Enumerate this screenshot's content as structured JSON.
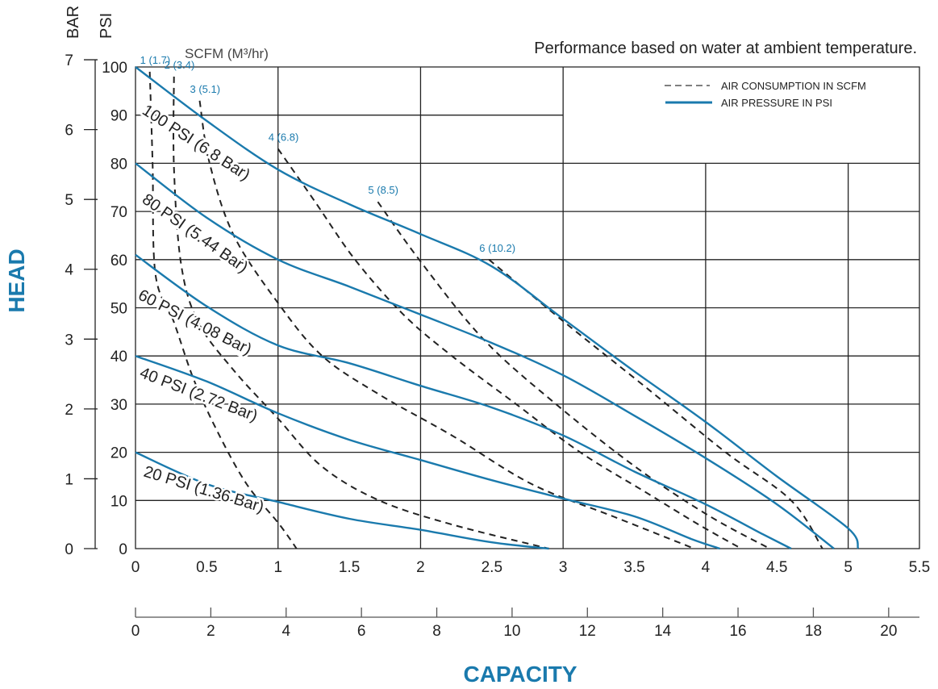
{
  "chart_data": {
    "type": "line",
    "title": "Performance based on water at ambient temperature.",
    "xlabel": "CAPACITY",
    "ylabel": "HEAD",
    "y_units_left": "BAR",
    "y_units_right": "PSI",
    "air_units_label": "SCFM (M³/hr)",
    "xlim": [
      0,
      5.5
    ],
    "ylim": [
      0,
      100
    ],
    "x_ticks": [
      "0",
      "0.5",
      "1",
      "1.5",
      "2",
      "2.5",
      "3",
      "3.5",
      "4",
      "4.5",
      "5",
      "5.5"
    ],
    "x_tick_values": [
      0,
      0.5,
      1,
      1.5,
      2,
      2.5,
      3,
      3.5,
      4,
      4.5,
      5,
      5.5
    ],
    "x2_ticks": [
      "0",
      "2",
      "4",
      "6",
      "8",
      "10",
      "12",
      "14",
      "16",
      "18",
      "20"
    ],
    "x2_tick_values": [
      0,
      2,
      4,
      6,
      8,
      10,
      12,
      14,
      16,
      18,
      20
    ],
    "x2_per_x": 3.785,
    "psi_ticks": [
      "0",
      "10",
      "20",
      "30",
      "40",
      "50",
      "60",
      "70",
      "80",
      "90",
      "100"
    ],
    "psi_tick_values": [
      0,
      10,
      20,
      30,
      40,
      50,
      60,
      70,
      80,
      90,
      100
    ],
    "bar_ticks": [
      "0",
      "1",
      "2",
      "3",
      "4",
      "5",
      "6",
      "7"
    ],
    "bar_tick_values": [
      0,
      1,
      2,
      3,
      4,
      5,
      6,
      7
    ],
    "psi_per_bar": 14.5,
    "grid": true,
    "legend": {
      "placement": "top-right",
      "entries": [
        "AIR CONSUMPTION IN SCFM",
        "AIR PRESSURE IN PSI"
      ]
    },
    "colors": {
      "pressure": "#1a7aad",
      "air": "#222222",
      "accent": "#1a7aad"
    },
    "pressure_series": [
      {
        "name": "100 PSI (6.8 Bar)",
        "points": [
          [
            0,
            100
          ],
          [
            0.5,
            88.8
          ],
          [
            1,
            78.7
          ],
          [
            1.5,
            71.5
          ],
          [
            2,
            65.3
          ],
          [
            2.5,
            58.6
          ],
          [
            3,
            47.7
          ],
          [
            3.5,
            36.8
          ],
          [
            4,
            26.3
          ],
          [
            4.5,
            15
          ],
          [
            5,
            4.2
          ],
          [
            5.07,
            0
          ]
        ]
      },
      {
        "name": "80 PSI (5.44 Bar)",
        "points": [
          [
            0,
            80
          ],
          [
            0.5,
            68.7
          ],
          [
            1,
            60
          ],
          [
            1.5,
            54.4
          ],
          [
            2,
            48.6
          ],
          [
            2.5,
            42.7
          ],
          [
            3,
            36
          ],
          [
            3.5,
            27.6
          ],
          [
            4,
            18.8
          ],
          [
            4.5,
            9.2
          ],
          [
            4.9,
            0
          ]
        ]
      },
      {
        "name": "60 PSI (4.08 Bar)",
        "points": [
          [
            0,
            61
          ],
          [
            0.5,
            50.3
          ],
          [
            1,
            42.2
          ],
          [
            1.5,
            38.5
          ],
          [
            2,
            33.8
          ],
          [
            2.5,
            29.3
          ],
          [
            3,
            23.5
          ],
          [
            3.5,
            16
          ],
          [
            4,
            9.2
          ],
          [
            4.4,
            3
          ],
          [
            4.6,
            0
          ]
        ]
      },
      {
        "name": "40 PSI (2.72 Bar)",
        "points": [
          [
            0,
            40
          ],
          [
            0.5,
            34.7
          ],
          [
            1,
            28.1
          ],
          [
            1.5,
            22.6
          ],
          [
            2,
            18.4
          ],
          [
            2.5,
            14.2
          ],
          [
            3,
            10.4
          ],
          [
            3.5,
            6.7
          ],
          [
            3.9,
            2
          ],
          [
            4.1,
            0
          ]
        ]
      },
      {
        "name": "20 PSI (1.36 Bar)",
        "points": [
          [
            0,
            20
          ],
          [
            0.5,
            13.4
          ],
          [
            1,
            9.7
          ],
          [
            1.5,
            6.2
          ],
          [
            2,
            3.9
          ],
          [
            2.5,
            1.3
          ],
          [
            2.9,
            0
          ]
        ]
      }
    ],
    "air_series": [
      {
        "name": "1 (1.7)",
        "points": [
          [
            0.1,
            99
          ],
          [
            0.12,
            80
          ],
          [
            0.14,
            57
          ],
          [
            0.27,
            47
          ],
          [
            0.41,
            35
          ],
          [
            0.58,
            24
          ],
          [
            0.78,
            13.4
          ],
          [
            1.01,
            5
          ],
          [
            1.13,
            0
          ]
        ]
      },
      {
        "name": "2 (3.4)",
        "points": [
          [
            0.27,
            98
          ],
          [
            0.27,
            79
          ],
          [
            0.32,
            59
          ],
          [
            0.44,
            47
          ],
          [
            0.69,
            37
          ],
          [
            1,
            27
          ],
          [
            1.31,
            17
          ],
          [
            1.71,
            10
          ],
          [
            2.22,
            5
          ],
          [
            2.9,
            0
          ]
        ]
      },
      {
        "name": "3 (5.1)",
        "points": [
          [
            0.45,
            93
          ],
          [
            0.52,
            80
          ],
          [
            0.69,
            65
          ],
          [
            1,
            51
          ],
          [
            1.31,
            40
          ],
          [
            1.71,
            32
          ],
          [
            2.22,
            23.5
          ],
          [
            2.78,
            13.4
          ],
          [
            3.35,
            6.7
          ],
          [
            3.92,
            0
          ]
        ]
      },
      {
        "name": "4 (6.8)",
        "points": [
          [
            1,
            83
          ],
          [
            1.26,
            72
          ],
          [
            1.54,
            60
          ],
          [
            1.88,
            48.6
          ],
          [
            2.22,
            40
          ],
          [
            2.67,
            30
          ],
          [
            3.12,
            20
          ],
          [
            3.58,
            11.7
          ],
          [
            3.95,
            5
          ],
          [
            4.25,
            0
          ]
        ]
      },
      {
        "name": "5 (8.5)",
        "points": [
          [
            1.7,
            72
          ],
          [
            1.99,
            60
          ],
          [
            2.44,
            43.5
          ],
          [
            2.95,
            30
          ],
          [
            3.52,
            16.7
          ],
          [
            4.03,
            6.7
          ],
          [
            4.45,
            0
          ]
        ]
      },
      {
        "name": "6 (10.2)",
        "points": [
          [
            2.48,
            60
          ],
          [
            3.01,
            47
          ],
          [
            3.58,
            33.5
          ],
          [
            4.14,
            20
          ],
          [
            4.6,
            10
          ],
          [
            4.82,
            0
          ]
        ]
      }
    ]
  }
}
